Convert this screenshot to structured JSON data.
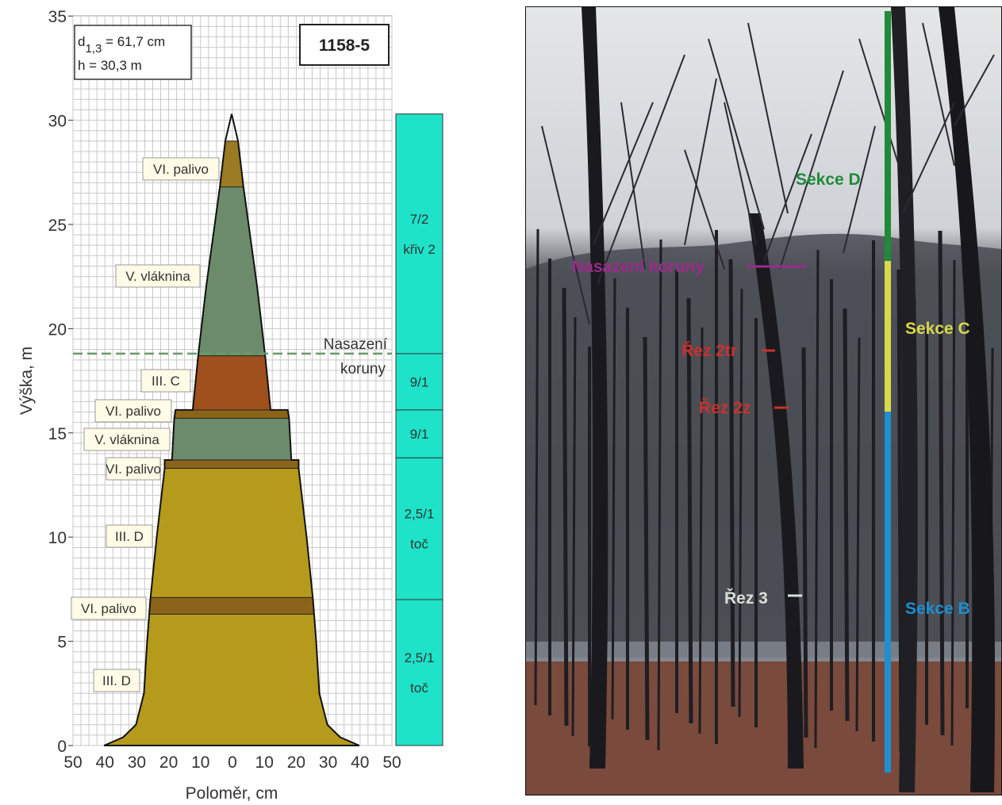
{
  "diagram": {
    "info_box": {
      "d_prefix": "d",
      "d_sub": "1,3",
      "d_value": " = 61,7 cm",
      "h_line": "h = 30,3 m"
    },
    "tree_id": "1158-5",
    "y_axis": {
      "label": "Výška, m",
      "ticks": [
        "0",
        "5",
        "10",
        "15",
        "20",
        "25",
        "30",
        "35"
      ]
    },
    "x_axis": {
      "label": "Poloměr, cm",
      "ticks": [
        "50",
        "40",
        "30",
        "20",
        "10",
        "0",
        "10",
        "20",
        "30",
        "40",
        "50"
      ]
    },
    "crown_line_label": [
      "Nasazení",
      "koruny"
    ],
    "segments": [
      {
        "label": "VI. palivo",
        "from_m": 26.8,
        "to_m": 29.0,
        "color": "#9a7a22"
      },
      {
        "label": "V. vláknina",
        "from_m": 18.7,
        "to_m": 26.8,
        "color": "#6b8b6b"
      },
      {
        "label": "III. C",
        "from_m": 16.1,
        "to_m": 18.7,
        "color": "#a0501c"
      },
      {
        "label": "VI. palivo",
        "from_m": 15.7,
        "to_m": 16.1,
        "color": "#8a6418"
      },
      {
        "label": "V. vláknina",
        "from_m": 13.7,
        "to_m": 15.7,
        "color": "#6b8b6b"
      },
      {
        "label": "VI. palivo",
        "from_m": 13.3,
        "to_m": 13.7,
        "color": "#8a6418"
      },
      {
        "label": "III. D",
        "from_m": 7.1,
        "to_m": 13.3,
        "color": "#b59a1c"
      },
      {
        "label": "VI. palivo",
        "from_m": 6.3,
        "to_m": 7.1,
        "color": "#8a6418"
      },
      {
        "label": "III. D",
        "from_m": 0.0,
        "to_m": 6.3,
        "color": "#b59a1c"
      }
    ],
    "assortments": [
      {
        "lines": [
          "7/2",
          "křiv 2"
        ],
        "from_m": 18.8,
        "to_m": 30.3
      },
      {
        "lines": [
          "9/1"
        ],
        "from_m": 16.1,
        "to_m": 18.8
      },
      {
        "lines": [
          "9/1"
        ],
        "from_m": 13.8,
        "to_m": 16.1
      },
      {
        "lines": [
          "2,5/1",
          "toč"
        ],
        "from_m": 7.0,
        "to_m": 13.8
      },
      {
        "lines": [
          "2,5/1",
          "toč"
        ],
        "from_m": 0.0,
        "to_m": 7.0
      }
    ]
  },
  "photo": {
    "labels": {
      "sekce_d": "Sekce D",
      "sekce_c": "Sekce C",
      "sekce_b": "Sekce B",
      "nasazeni": "Nasazení koruny",
      "rez_2tr": "Řez 2tr",
      "rez_2z": "Řez 2z",
      "rez_3": "Řez 3"
    },
    "colors": {
      "sekce_d": "#1f8a3a",
      "sekce_c": "#d8d84a",
      "sekce_b": "#1e8fd0",
      "nasazeni": "#9a2b8a",
      "rez": "#c8322e",
      "rez_3": "#d8e0d8"
    }
  }
}
